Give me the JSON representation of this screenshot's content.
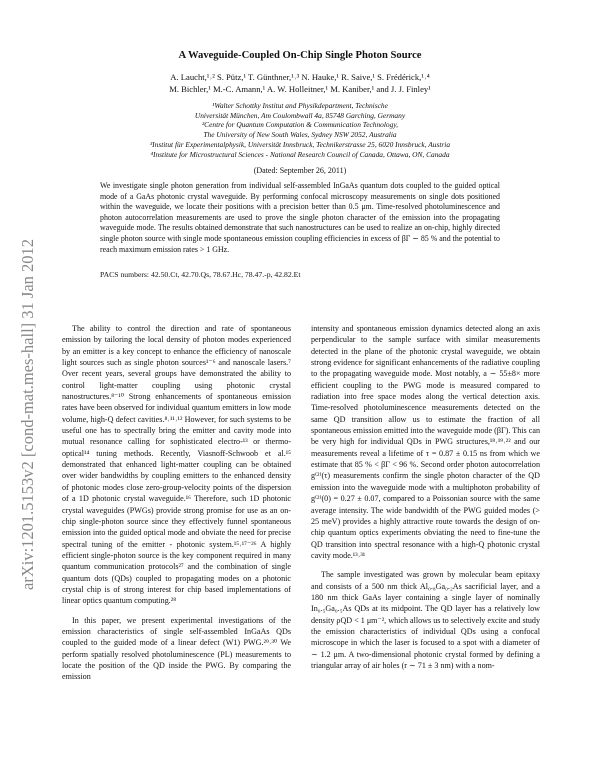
{
  "sidebar": "arXiv:1201.5153v2  [cond-mat.mes-hall]  31 Jan 2012",
  "header": {
    "title": "A Waveguide-Coupled On-Chip Single Photon Source",
    "authors": [
      "A. Laucht,¹˒² S. Pütz,¹ T. Günthner,¹˒³ N. Hauke,¹ R. Saive,¹ S. Frédérick,¹˒⁴",
      "M. Bichler,¹ M.-C. Amann,¹ A. W. Holleitner,¹ M. Kaniber,¹ and J. J. Finley¹"
    ],
    "affiliations": [
      "¹Walter Schottky Institut and Physikdepartment, Technische",
      "Universität München, Am Coulombwall 4a, 85748 Garching, Germany",
      "²Centre for Quantum Computation & Communication Technology,",
      "The University of New South Wales, Sydney NSW 2052, Australia",
      "³Institut für Experimentalphysik, Universität Innsbruck, Technikerstrasse 25, 6020 Innsbruck, Austria",
      "⁴Institute for Microstructural Sciences - National Research Council of Canada, Ottawa, ON, Canada"
    ],
    "dated": "(Dated: September 26, 2011)"
  },
  "abstract": "We investigate single photon generation from individual self-assembled InGaAs quantum dots coupled to the guided optical mode of a GaAs photonic crystal waveguide. By performing confocal microscopy measurements on single dots positioned within the waveguide, we locate their positions with a precision better than 0.5 μm. Time-resolved photoluminescence and photon autocorrelation measurements are used to prove the single photon character of the emission into the propagating waveguide mode. The results obtained demonstrate that such nanostructures can be used to realize an on-chip, highly directed single photon source with single mode spontaneous emission coupling efficiencies in excess of βΓ ∼ 85 % and the potential to reach maximum emission rates > 1 GHz.",
  "pacs": "PACS numbers: 42.50.Ct, 42.70.Qs, 78.67.Hc, 78.47.-p, 42.82.Et",
  "body": {
    "left": [
      "The ability to control the direction and rate of spontaneous emission by tailoring the local density of photon modes experienced by an emitter is a key concept to enhance the efficiency of nanoscale light sources such as single photon sources¹⁻⁶ and nanoscale lasers.⁷ Over recent years, several groups have demonstrated the ability to control light-matter coupling using photonic crystal nanostructures.⁸⁻¹⁰ Strong enhancements of spontaneous emission rates have been observed for individual quantum emitters in low mode volume, high-Q defect cavities.⁸˒¹¹˒¹² However, for such systems to be useful one has to spectrally bring the emitter and cavity mode into mutual resonance calling for sophisticated electro-¹³ or thermo-optical¹⁴ tuning methods. Recently, Viasnoff-Schwoob et al.¹⁵ demonstrated that enhanced light-matter coupling can be obtained over wider bandwidths by coupling emitters to the enhanced density of photonic modes close zero-group-velocity points of the dispersion of a 1D photonic crystal waveguide.¹⁶ Therefore, such 1D photonic crystal waveguides (PWGs) provide strong promise for use as an on-chip single-photon source since they effectively funnel spontaneous emission into the guided optical mode and obviate the need for precise spectral tuning of the emitter - photonic system.¹⁵˒¹⁷⁻²⁶ A highly efficient single-photon source is the key component required in many quantum communication protocols²⁷ and the combination of single quantum dots (QDs) coupled to propagating modes on a photonic crystal chip is of strong interest for chip based implementations of linear optics quantum computing.²⁸",
      "In this paper, we present experimental investigations of the emission characteristics of single self-assembled InGaAs QDs coupled to the guided mode of a linear defect (W1) PWG.²⁹˒³⁰ We perform spatially resolved photoluminescence (PL) measurements to locate the position of the QD inside the PWG. By comparing the emission"
    ],
    "right": [
      "intensity and spontaneous emission dynamics detected along an axis perpendicular to the sample surface with similar measurements detected in the plane of the photonic crystal waveguide, we obtain strong evidence for significant enhancements of the radiative coupling to the propagating waveguide mode. Most notably, a ∼ 55±8× more efficient coupling to the PWG mode is measured compared to radiation into free space modes along the vertical detection axis. Time-resolved photoluminescence measurements detected on the same QD transition allow us to estimate the fraction of all spontaneous emission emitted into the waveguide mode (βΓ). This can be very high for individual QDs in PWG structures,¹⁸˒¹⁹˒²² and our measurements reveal a lifetime of τ = 0.87 ± 0.15 ns from which we estimate that 85 % < βΓ < 96 %. Second order photon autocorrelation g⁽²⁾(τ) measurements confirm the single photon character of the QD emission into the waveguide mode with a multiphoton probability of g⁽²⁾(0) = 0.27 ± 0.07, compared to a Poissonian source with the same average intensity. The wide bandwidth of the PWG guided modes (> 25 meV) provides a highly attractive route towards the design of on-chip quantum optics experiments obviating the need to fine-tune the QD transition into spectral resonance with a high-Q photonic crystal cavity mode.¹³˒³¹",
      "The sample investigated was grown by molecular beam epitaxy and consists of a 500 nm thick Al₀.₈Ga₀.₂As sacrificial layer, and a 180 nm thick GaAs layer containing a single layer of nominally In₀.₅Ga₀.₅As QDs at its midpoint. The QD layer has a relatively low density ρQD < 1 μm⁻², which allows us to selectively excite and study the emission characteristics of individual QDs using a confocal microscope in which the laser is focused to a spot with a diameter of ∼ 1.2 μm. A two-dimensional photonic crystal formed by defining a triangular array of air holes (r ∼ 71 ± 3 nm) with a nom-"
    ]
  }
}
